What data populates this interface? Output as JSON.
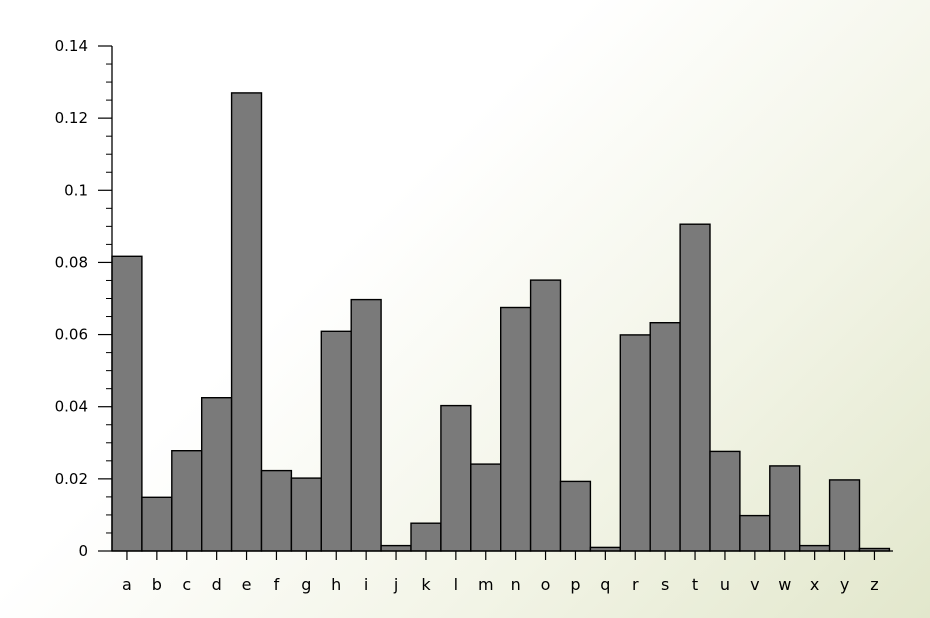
{
  "chart_data": {
    "type": "bar",
    "title": "",
    "xlabel": "",
    "ylabel": "",
    "ylim": [
      0,
      0.14
    ],
    "yticks": [
      0,
      0.02,
      0.04,
      0.06,
      0.08,
      0.1,
      0.12,
      0.14
    ],
    "ytick_labels": [
      "0",
      "0.02",
      "0.04",
      "0.06",
      "0.08",
      "0.1",
      "0.12",
      "0.14"
    ],
    "grid": false,
    "bar_color": "#7a7a7a",
    "categories": [
      "a",
      "b",
      "c",
      "d",
      "e",
      "f",
      "g",
      "h",
      "i",
      "j",
      "k",
      "l",
      "m",
      "n",
      "o",
      "p",
      "q",
      "r",
      "s",
      "t",
      "u",
      "v",
      "w",
      "x",
      "y",
      "z"
    ],
    "values": [
      0.0817,
      0.0149,
      0.0278,
      0.0425,
      0.127,
      0.0223,
      0.0202,
      0.0609,
      0.0697,
      0.0015,
      0.0077,
      0.0403,
      0.0241,
      0.0675,
      0.0751,
      0.0193,
      0.001,
      0.0599,
      0.0633,
      0.0906,
      0.0276,
      0.0098,
      0.0236,
      0.0015,
      0.0197,
      0.0007
    ]
  }
}
